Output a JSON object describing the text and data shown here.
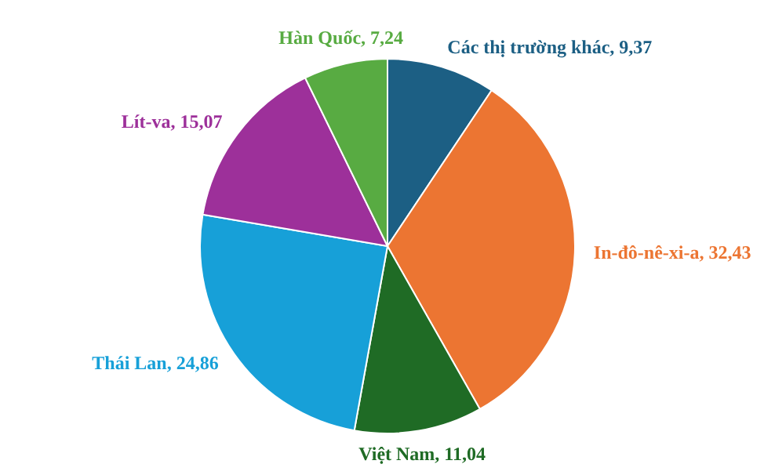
{
  "chart_data": {
    "type": "pie",
    "categories": [
      "Các thị trường khác",
      "In-đô-nê-xi-a",
      "Việt Nam",
      "Thái Lan",
      "Lít-va",
      "Hàn Quốc"
    ],
    "values": [
      9.37,
      32.43,
      11.04,
      24.86,
      15.07,
      7.24
    ],
    "value_labels": [
      "9,37",
      "32,43",
      "11,04",
      "24,86",
      "15,07",
      "7,24"
    ],
    "colors": [
      "#1c5f84",
      "#ec7532",
      "#1f6b25",
      "#17a0d8",
      "#9d309a",
      "#58ab42"
    ]
  }
}
